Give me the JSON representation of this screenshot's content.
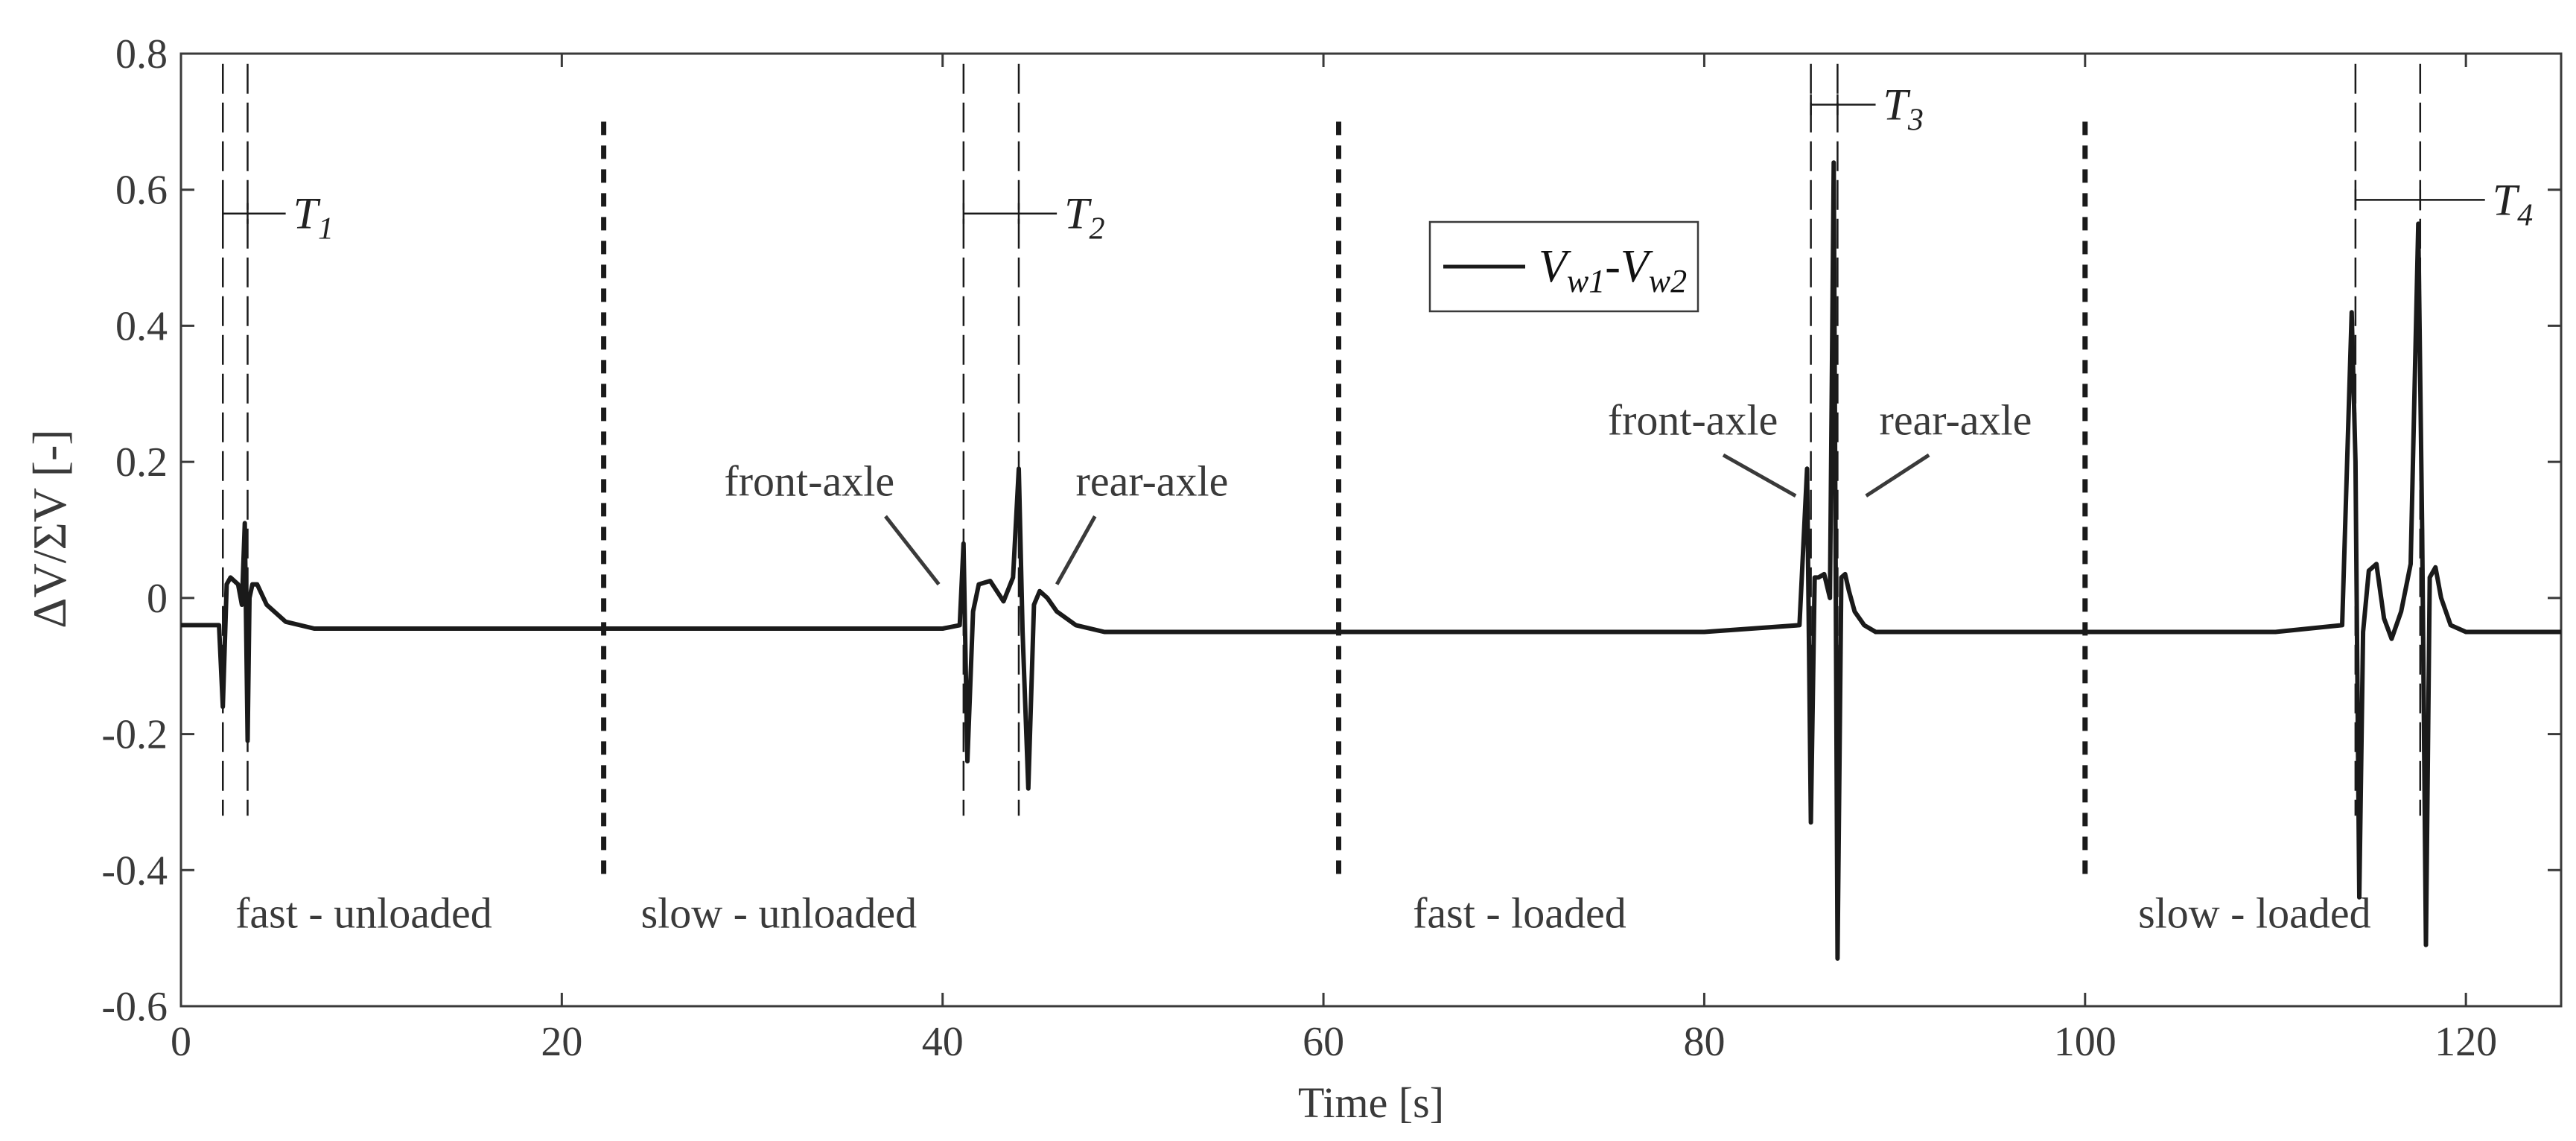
{
  "chart_data": {
    "type": "line",
    "xlabel": "Time [s]",
    "ylabel": "ΔV/ΣV [-]",
    "xlim": [
      0,
      125
    ],
    "ylim": [
      -0.6,
      0.8
    ],
    "xticks": [
      0,
      20,
      40,
      60,
      80,
      100,
      120
    ],
    "xtick_labels": [
      "0",
      "20",
      "40",
      "60",
      "80",
      "100",
      "120"
    ],
    "yticks": [
      -0.6,
      -0.4,
      -0.2,
      0,
      0.2,
      0.4,
      0.6,
      0.8
    ],
    "ytick_labels": [
      "-0.6",
      "-0.4",
      "-0.2",
      "0",
      "0.2",
      "0.4",
      "0.6",
      "0.8"
    ],
    "grid": false,
    "legend": {
      "placement": "top-center",
      "entries": [
        "Vw1-Vw2"
      ],
      "label_main": "V",
      "sub1": "w1",
      "sep": "-",
      "label_main2": "V",
      "sub2": "w2"
    },
    "series": [
      {
        "name": "Vw1-Vw2",
        "color": "#1a1a1a",
        "x": [
          0,
          2.0,
          2.2,
          2.4,
          2.6,
          3.0,
          3.2,
          3.35,
          3.5,
          3.6,
          3.75,
          4.0,
          4.5,
          5.5,
          7,
          10,
          20,
          30,
          40,
          40.9,
          41.1,
          41.3,
          41.6,
          41.9,
          42.5,
          43.2,
          43.7,
          44.0,
          44.2,
          44.5,
          44.8,
          45.1,
          45.5,
          46,
          47,
          48.5,
          50,
          60,
          70,
          80,
          85.0,
          85.4,
          85.6,
          85.8,
          86.0,
          86.3,
          86.6,
          86.8,
          87.0,
          87.2,
          87.4,
          87.6,
          87.9,
          88.4,
          89,
          90,
          92,
          100,
          110,
          113.5,
          114.0,
          114.2,
          114.4,
          114.6,
          114.9,
          115.3,
          115.7,
          116.1,
          116.6,
          117.1,
          117.5,
          117.7,
          117.9,
          118.1,
          118.4,
          118.7,
          119.2,
          120,
          121,
          125
        ],
        "values": [
          -0.04,
          -0.04,
          -0.16,
          0.02,
          0.03,
          0.02,
          -0.01,
          0.11,
          -0.21,
          0.0,
          0.02,
          0.02,
          -0.01,
          -0.035,
          -0.045,
          -0.045,
          -0.045,
          -0.045,
          -0.045,
          -0.04,
          0.08,
          -0.24,
          -0.02,
          0.02,
          0.025,
          -0.005,
          0.03,
          0.19,
          -0.05,
          -0.28,
          -0.01,
          0.01,
          0.0,
          -0.02,
          -0.04,
          -0.05,
          -0.05,
          -0.05,
          -0.05,
          -0.05,
          -0.04,
          0.19,
          -0.33,
          0.03,
          0.03,
          0.035,
          0.0,
          0.64,
          -0.53,
          0.03,
          0.035,
          0.01,
          -0.02,
          -0.04,
          -0.05,
          -0.05,
          -0.05,
          -0.05,
          -0.05,
          -0.04,
          0.42,
          0.2,
          -0.44,
          -0.05,
          0.04,
          0.05,
          -0.03,
          -0.06,
          -0.02,
          0.05,
          0.55,
          0.1,
          -0.51,
          0.03,
          0.045,
          0.0,
          -0.04,
          -0.05,
          -0.05,
          -0.05
        ]
      }
    ],
    "dashed_markers": [
      2.2,
      3.5,
      41.1,
      44.0,
      85.6,
      87.0,
      114.2,
      117.6
    ],
    "section_dividers": [
      22.2,
      60.8,
      100.0
    ],
    "section_labels": [
      {
        "text": "fast - unloaded",
        "x": 9.6,
        "y": -0.465
      },
      {
        "text": "slow - unloaded",
        "x": 31.4,
        "y": -0.465
      },
      {
        "text": "fast - loaded",
        "x": 70.3,
        "y": -0.465
      },
      {
        "text": "slow - loaded",
        "x": 108.9,
        "y": -0.465
      }
    ],
    "axle_labels": [
      {
        "text": "front-axle",
        "x": 33.0,
        "y": 0.17,
        "line": [
          [
            37.0,
            0.12
          ],
          [
            39.8,
            0.02
          ]
        ]
      },
      {
        "text": "rear-axle",
        "x": 51.0,
        "y": 0.17,
        "line": [
          [
            48.0,
            0.12
          ],
          [
            46.0,
            0.02
          ]
        ]
      },
      {
        "text": "front-axle",
        "x": 79.4,
        "y": 0.26,
        "line": [
          [
            81.0,
            0.21
          ],
          [
            84.8,
            0.15
          ]
        ]
      },
      {
        "text": "rear-axle",
        "x": 93.2,
        "y": 0.26,
        "line": [
          [
            91.8,
            0.21
          ],
          [
            88.5,
            0.15
          ]
        ]
      }
    ],
    "period_markers": [
      {
        "label": "T",
        "sub": "1",
        "x1": 2.2,
        "x2": 3.5,
        "y": 0.565,
        "x_end": 5.5
      },
      {
        "label": "T",
        "sub": "2",
        "x1": 41.1,
        "x2": 44.0,
        "y": 0.565,
        "x_end": 46.0
      },
      {
        "label": "T",
        "sub": "3",
        "x1": 85.6,
        "x2": 87.0,
        "y": 0.725,
        "x_end": 89.0
      },
      {
        "label": "T",
        "sub": "4",
        "x1": 114.2,
        "x2": 117.6,
        "y": 0.585,
        "x_end": 121.0
      }
    ]
  }
}
